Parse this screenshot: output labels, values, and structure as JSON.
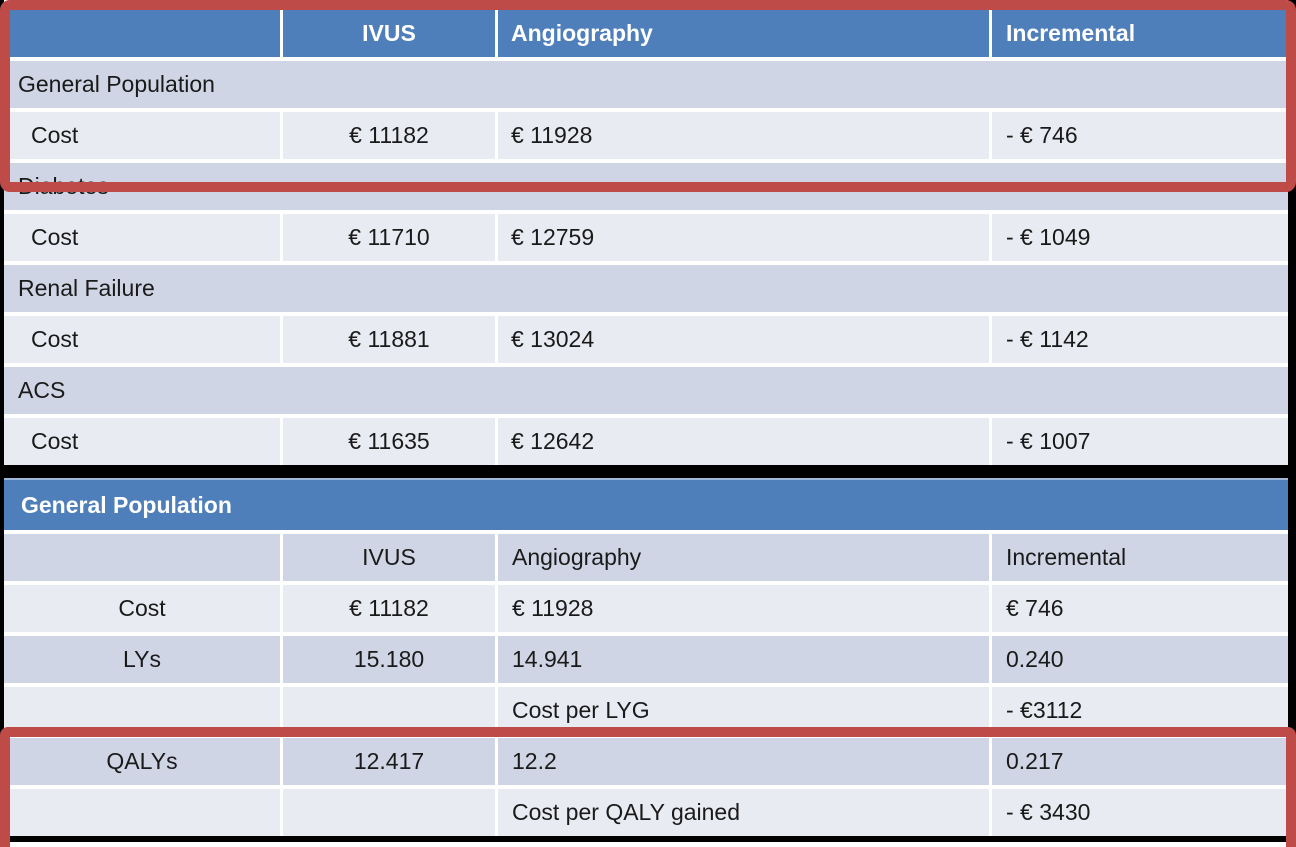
{
  "colors": {
    "header_blue": "#4e7fba",
    "header_blue_top_edge": "#9fb8da",
    "band_dark": "#cfd5e4",
    "band_light": "#e9ebf3",
    "highlight_red": "#be4b48",
    "table_border": "#000000",
    "text_dark": "#1a1a1a",
    "text_on_blue": "#ffffff"
  },
  "table1": {
    "columns": [
      "",
      "IVUS",
      "Angiography",
      "Incremental"
    ],
    "sections": [
      {
        "label": "General Population",
        "row": {
          "label": "Cost",
          "ivus": "€ 11182",
          "angiography": "€ 11928",
          "incremental": "- € 746"
        }
      },
      {
        "label": "Diabetes",
        "row": {
          "label": "Cost",
          "ivus": "€ 11710",
          "angiography": "€ 12759",
          "incremental": "- € 1049"
        }
      },
      {
        "label": "Renal Failure",
        "row": {
          "label": "Cost",
          "ivus": "€ 11881",
          "angiography": "€ 13024",
          "incremental": "- € 1142"
        }
      },
      {
        "label": "ACS",
        "row": {
          "label": "Cost",
          "ivus": "€ 11635",
          "angiography": "€ 12642",
          "incremental": "- € 1007"
        }
      }
    ]
  },
  "table2": {
    "title": "General Population",
    "columns": [
      "",
      "IVUS",
      "Angiography",
      "Incremental"
    ],
    "rows": [
      {
        "label": "Cost",
        "ivus": "€ 11182",
        "angiography": "€ 11928",
        "incremental": "€ 746"
      },
      {
        "label": "LYs",
        "ivus": "15.180",
        "angiography": "14.941",
        "incremental": "0.240"
      },
      {
        "label": "",
        "ivus": "",
        "angiography": "Cost per LYG",
        "incremental": "- €3112"
      },
      {
        "label": "QALYs",
        "ivus": "12.417",
        "angiography": "12.2",
        "incremental": "0.217"
      },
      {
        "label": "",
        "ivus": "",
        "angiography": "Cost per QALY gained",
        "incremental": "- € 3430"
      }
    ]
  },
  "highlights": {
    "box1_target": "table1 header, General Population section and its Cost row",
    "box2_target": "table2 QALYs row and Cost per QALY gained row"
  }
}
